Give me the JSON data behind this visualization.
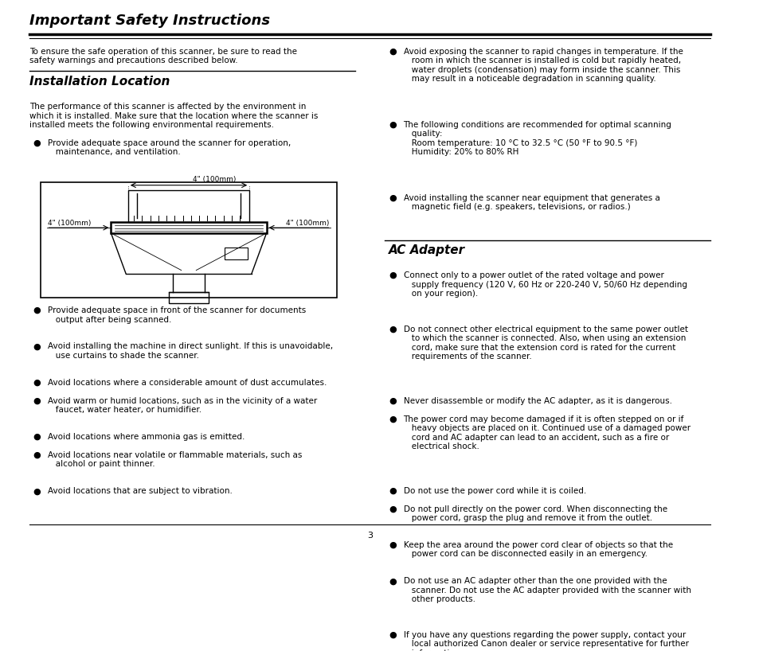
{
  "title": "Important Safety Instructions",
  "background_color": "#ffffff",
  "text_color": "#000000",
  "page_number": "3",
  "intro_text": "To ensure the safe operation of this scanner, be sure to read the\nsafety warnings and precautions described below.",
  "section1_title": "Installation Location",
  "section1_intro": "The performance of this scanner is affected by the environment in\nwhich it is installed. Make sure that the location where the scanner is\ninstalled meets the following environmental requirements.",
  "section1_bullets_left": [
    "Provide adequate space around the scanner for operation,\n   maintenance, and ventilation.",
    "Provide adequate space in front of the scanner for documents\n   output after being scanned.",
    "Avoid installing the machine in direct sunlight. If this is unavoidable,\n   use curtains to shade the scanner.",
    "Avoid locations where a considerable amount of dust accumulates.",
    "Avoid warm or humid locations, such as in the vicinity of a water\n   faucet, water heater, or humidifier.",
    "Avoid locations where ammonia gas is emitted.",
    "Avoid locations near volatile or flammable materials, such as\n   alcohol or paint thinner.",
    "Avoid locations that are subject to vibration."
  ],
  "section1_bullets_right": [
    "Avoid exposing the scanner to rapid changes in temperature. If the\n   room in which the scanner is installed is cold but rapidly heated,\n   water droplets (condensation) may form inside the scanner. This\n   may result in a noticeable degradation in scanning quality.",
    "The following conditions are recommended for optimal scanning\n   quality:\n   Room temperature: 10 °C to 32.5 °C (50 °F to 90.5 °F)\n   Humidity: 20% to 80% RH",
    "Avoid installing the scanner near equipment that generates a\n   magnetic field (e.g. speakers, televisions, or radios.)"
  ],
  "section2_title": "AC Adapter",
  "section2_bullets": [
    "Connect only to a power outlet of the rated voltage and power\n   supply frequency (120 V, 60 Hz or 220-240 V, 50/60 Hz depending\n   on your region).",
    "Do not connect other electrical equipment to the same power outlet\n   to which the scanner is connected. Also, when using an extension\n   cord, make sure that the extension cord is rated for the current\n   requirements of the scanner.",
    "Never disassemble or modify the AC adapter, as it is dangerous.",
    "The power cord may become damaged if it is often stepped on or if\n   heavy objects are placed on it. Continued use of a damaged power\n   cord and AC adapter can lead to an accident, such as a fire or\n   electrical shock.",
    "Do not use the power cord while it is coiled.",
    "Do not pull directly on the power cord. When disconnecting the\n   power cord, grasp the plug and remove it from the outlet.",
    "Keep the area around the power cord clear of objects so that the\n   power cord can be disconnected easily in an emergency.",
    "Do not use an AC adapter other than the one provided with the\n   scanner. Do not use the AC adapter provided with the scanner with\n   other products.",
    "If you have any questions regarding the power supply, contact your\n   local authorized Canon dealer or service representative for further\n   information."
  ]
}
